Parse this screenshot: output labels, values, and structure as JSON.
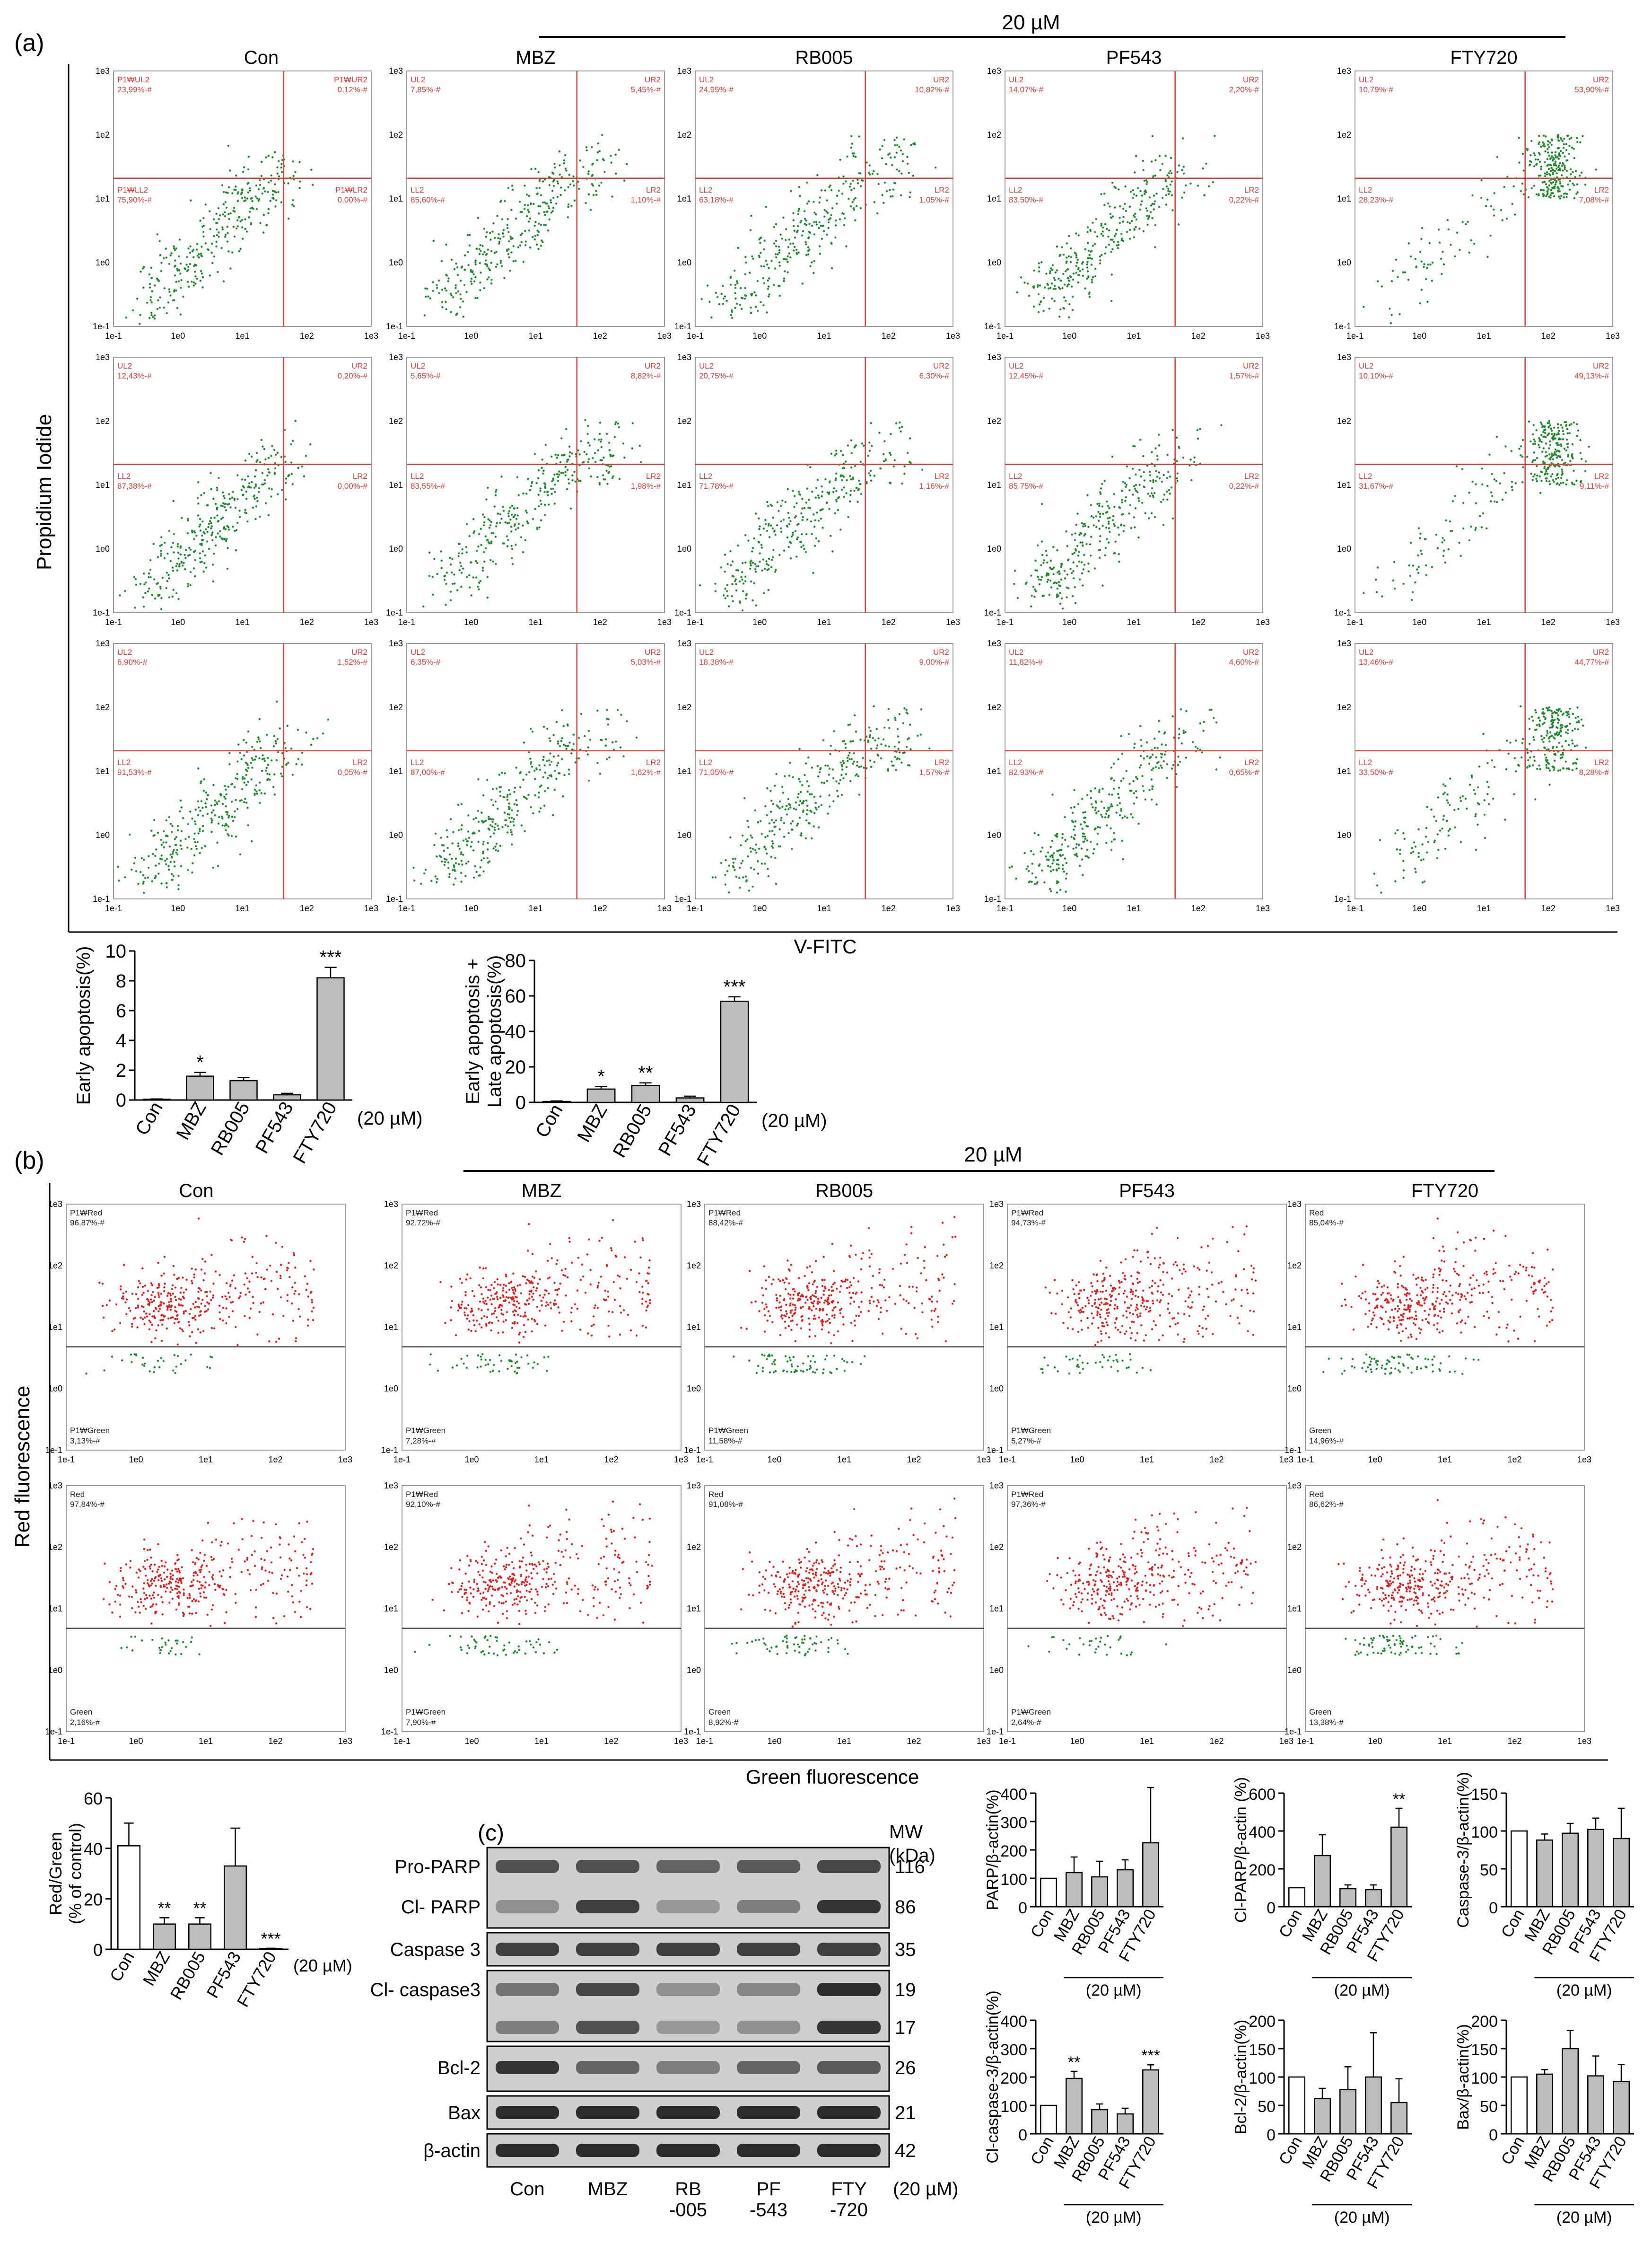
{
  "panel_labels": {
    "a": "(a)",
    "b": "(b)",
    "c": "(c)"
  },
  "colors": {
    "dot_green": "#1f8a2e",
    "dot_red": "#e02020",
    "gate_red": "#e43b3b",
    "bar_gray": "#bdbdbd",
    "bar_white": "#ffffff"
  },
  "panel_a": {
    "dose_label": "20 µM",
    "columns": [
      "Con",
      "MBZ",
      "RB005",
      "PF543",
      "FTY720"
    ],
    "y_axis_label": "Propidium Iodide",
    "x_axis_label": "V-FITC",
    "decade_ticks": [
      "1e-1",
      "1e0",
      "1e1",
      "1e2",
      "1e3"
    ],
    "plots": [
      [
        {
          "ul_label": "P1₩UL2",
          "ul": "23,99%-#",
          "ur_label": "P1₩UR2",
          "ur": "0,12%-#",
          "ll_label": "P1₩LL2",
          "ll": "75,90%-#",
          "lr_label": "P1₩LR2",
          "lr": "0,00%-#"
        },
        {
          "ul_label": "UL2",
          "ul": "7,85%-#",
          "ur_label": "UR2",
          "ur": "5,45%-#",
          "ll_label": "LL2",
          "ll": "85,60%-#",
          "lr_label": "LR2",
          "lr": "1,10%-#"
        },
        {
          "ul_label": "UL2",
          "ul": "24,95%-#",
          "ur_label": "UR2",
          "ur": "10,82%-#",
          "ll_label": "LL2",
          "ll": "63,18%-#",
          "lr_label": "LR2",
          "lr": "1,05%-#"
        },
        {
          "ul_label": "UL2",
          "ul": "14,07%-#",
          "ur_label": "UR2",
          "ur": "2,20%-#",
          "ll_label": "LL2",
          "ll": "83,50%-#",
          "lr_label": "LR2",
          "lr": "0,22%-#"
        },
        {
          "ul_label": "UL2",
          "ul": "10,79%-#",
          "ur_label": "UR2",
          "ur": "53,90%-#",
          "ll_label": "LL2",
          "ll": "28,23%-#",
          "lr_label": "LR2",
          "lr": "7,08%-#"
        }
      ],
      [
        {
          "ul_label": "UL2",
          "ul": "12,43%-#",
          "ur_label": "UR2",
          "ur": "0,20%-#",
          "ll_label": "LL2",
          "ll": "87,38%-#",
          "lr_label": "LR2",
          "lr": "0,00%-#"
        },
        {
          "ul_label": "UL2",
          "ul": "5,65%-#",
          "ur_label": "UR2",
          "ur": "8,82%-#",
          "ll_label": "LL2",
          "ll": "83,55%-#",
          "lr_label": "LR2",
          "lr": "1,98%-#"
        },
        {
          "ul_label": "UL2",
          "ul": "20,75%-#",
          "ur_label": "UR2",
          "ur": "6,30%-#",
          "ll_label": "LL2",
          "ll": "71,78%-#",
          "lr_label": "LR2",
          "lr": "1,16%-#"
        },
        {
          "ul_label": "UL2",
          "ul": "12,45%-#",
          "ur_label": "UR2",
          "ur": "1,57%-#",
          "ll_label": "LL2",
          "ll": "85,75%-#",
          "lr_label": "LR2",
          "lr": "0,22%-#"
        },
        {
          "ul_label": "UL2",
          "ul": "10,10%-#",
          "ur_label": "UR2",
          "ur": "49,13%-#",
          "ll_label": "LL2",
          "ll": "31,67%-#",
          "lr_label": "LR2",
          "lr": "9,11%-#"
        }
      ],
      [
        {
          "ul_label": "UL2",
          "ul": "6,90%-#",
          "ur_label": "UR2",
          "ur": "1,52%-#",
          "ll_label": "LL2",
          "ll": "91,53%-#",
          "lr_label": "LR2",
          "lr": "0,05%-#"
        },
        {
          "ul_label": "UL2",
          "ul": "6,35%-#",
          "ur_label": "UR2",
          "ur": "5,03%-#",
          "ll_label": "LL2",
          "ll": "87,00%-#",
          "lr_label": "LR2",
          "lr": "1,62%-#"
        },
        {
          "ul_label": "UL2",
          "ul": "18,38%-#",
          "ur_label": "UR2",
          "ur": "9,00%-#",
          "ll_label": "LL2",
          "ll": "71,05%-#",
          "lr_label": "LR2",
          "lr": "1,57%-#"
        },
        {
          "ul_label": "UL2",
          "ul": "11,82%-#",
          "ur_label": "UR2",
          "ur": "4,60%-#",
          "ll_label": "LL2",
          "ll": "82,93%-#",
          "lr_label": "LR2",
          "lr": "0,65%-#"
        },
        {
          "ul_label": "UL2",
          "ul": "13,46%-#",
          "ur_label": "UR2",
          "ur": "44,77%-#",
          "ll_label": "LL2",
          "ll": "33,50%-#",
          "lr_label": "LR2",
          "lr": "8,28%-#"
        }
      ]
    ]
  },
  "panel_b": {
    "dose_label": "20 µM",
    "columns": [
      "Con",
      "MBZ",
      "RB005",
      "PF543",
      "FTY720"
    ],
    "y_axis_label": "Red fluorescence",
    "x_axis_label": "Green fluorescence",
    "decade_ticks": [
      "1e-1",
      "1e0",
      "1e1",
      "1e2",
      "1e3"
    ],
    "plots": [
      [
        {
          "red_label": "P1₩Red",
          "red": "96,87%-#",
          "green_label": "P1₩Green",
          "green": "3,13%-#"
        },
        {
          "red_label": "P1₩Red",
          "red": "92,72%-#",
          "green_label": "P1₩Green",
          "green": "7,28%-#"
        },
        {
          "red_label": "P1₩Red",
          "red": "88,42%-#",
          "green_label": "P1₩Green",
          "green": "11,58%-#"
        },
        {
          "red_label": "P1₩Red",
          "red": "94,73%-#",
          "green_label": "P1₩Green",
          "green": "5,27%-#"
        },
        {
          "red_label": "Red",
          "red": "85,04%-#",
          "green_label": "Green",
          "green": "14,96%-#"
        }
      ],
      [
        {
          "red_label": "Red",
          "red": "97,84%-#",
          "green_label": "Green",
          "green": "2,16%-#"
        },
        {
          "red_label": "P1₩Red",
          "red": "92,10%-#",
          "green_label": "P1₩Green",
          "green": "7,90%-#"
        },
        {
          "red_label": "Red",
          "red": "91,08%-#",
          "green_label": "Green",
          "green": "8,92%-#"
        },
        {
          "red_label": "P1₩Red",
          "red": "97,36%-#",
          "green_label": "P1₩Green",
          "green": "2,64%-#"
        },
        {
          "red_label": "Red",
          "red": "86,62%-#",
          "green_label": "Green",
          "green": "13,38%-#"
        }
      ]
    ]
  },
  "panel_c": {
    "mw_header": "MW",
    "mw_unit": "(kDa)",
    "blots": [
      {
        "label": "Pro-PARP",
        "mw": "116"
      },
      {
        "label": "Cl- PARP",
        "mw": "86"
      },
      {
        "label": "Caspase 3",
        "mw": "35"
      },
      {
        "label": "Cl- caspase3",
        "mw": "19"
      },
      {
        "label": "",
        "mw": "17"
      },
      {
        "label": "Bcl-2",
        "mw": "26"
      },
      {
        "label": "Bax",
        "mw": "21"
      },
      {
        "label": "β-actin",
        "mw": "42"
      }
    ],
    "lanes": [
      "Con",
      "MBZ",
      "RB\n-005",
      "PF\n-543",
      "FTY\n-720"
    ],
    "lane_dose": "(20 µM)"
  },
  "chart_data": [
    {
      "type": "bar",
      "id": "early",
      "ylabel": "Early apoptosis(%)",
      "categories": [
        "Con",
        "MBZ",
        "RB005",
        "PF543",
        "FTY720"
      ],
      "values": [
        0.05,
        1.6,
        1.3,
        0.35,
        8.2
      ],
      "errors": [
        0.02,
        0.25,
        0.2,
        0.1,
        0.7
      ],
      "sig": [
        "",
        "*",
        "",
        "",
        "***"
      ],
      "ylim": [
        0,
        10
      ],
      "yticks": [
        0,
        2,
        4,
        6,
        8,
        10
      ],
      "dose": "(20 µM)",
      "fills": [
        "#bdbdbd",
        "#bdbdbd",
        "#bdbdbd",
        "#bdbdbd",
        "#bdbdbd"
      ]
    },
    {
      "type": "bar",
      "id": "late",
      "ylabel": "Early apoptosis + Late apoptosis(%)",
      "categories": [
        "Con",
        "MBZ",
        "RB005",
        "PF543",
        "FTY720"
      ],
      "values": [
        0.5,
        7.5,
        9.5,
        2.5,
        57
      ],
      "errors": [
        0.3,
        1.5,
        1.5,
        1.0,
        2.5
      ],
      "sig": [
        "",
        "*",
        "**",
        "",
        "***"
      ],
      "ylim": [
        0,
        80
      ],
      "yticks": [
        0,
        20,
        40,
        60,
        80
      ],
      "dose": "(20 µM)",
      "fills": [
        "#bdbdbd",
        "#bdbdbd",
        "#bdbdbd",
        "#bdbdbd",
        "#bdbdbd"
      ]
    },
    {
      "type": "bar",
      "id": "redgreen",
      "ylabel": "Red/Green (% of control)",
      "categories": [
        "Con",
        "MBZ",
        "RB005",
        "PF543",
        "FTY720"
      ],
      "values": [
        41,
        10,
        10,
        33,
        0.3
      ],
      "errors": [
        9,
        2.5,
        2.5,
        15,
        0.1
      ],
      "sig": [
        "",
        "**",
        "**",
        "",
        "***"
      ],
      "ylim": [
        0,
        60
      ],
      "yticks": [
        0,
        20,
        40,
        60
      ],
      "dose": "(20 µM)",
      "fills": [
        "#ffffff",
        "#bdbdbd",
        "#bdbdbd",
        "#bdbdbd",
        "#bdbdbd"
      ]
    },
    {
      "type": "bar",
      "id": "parp",
      "ylabel": "PARP/β-actin(%)",
      "categories": [
        "Con",
        "MBZ",
        "RB005",
        "PF543",
        "FTY720"
      ],
      "values": [
        100,
        120,
        105,
        130,
        225
      ],
      "errors": [
        0,
        55,
        55,
        35,
        195
      ],
      "sig": [
        "",
        "",
        "",
        "",
        ""
      ],
      "ylim": [
        0,
        400
      ],
      "yticks": [
        0,
        100,
        200,
        300,
        400
      ],
      "dose": "(20 µM)",
      "fills": [
        "#ffffff",
        "#bdbdbd",
        "#bdbdbd",
        "#bdbdbd",
        "#bdbdbd"
      ]
    },
    {
      "type": "bar",
      "id": "clparp",
      "ylabel": "Cl-PARP/β-actin (%)",
      "categories": [
        "Con",
        "MBZ",
        "RB005",
        "PF543",
        "FTY720"
      ],
      "values": [
        100,
        270,
        95,
        90,
        420
      ],
      "errors": [
        0,
        110,
        20,
        25,
        100
      ],
      "sig": [
        "",
        "",
        "",
        "",
        "**"
      ],
      "ylim": [
        0,
        600
      ],
      "yticks": [
        0,
        200,
        400,
        600
      ],
      "dose": "(20 µM)",
      "fills": [
        "#ffffff",
        "#bdbdbd",
        "#bdbdbd",
        "#bdbdbd",
        "#bdbdbd"
      ]
    },
    {
      "type": "bar",
      "id": "casp3",
      "ylabel": "Caspase-3/β-actin(%)",
      "categories": [
        "Con",
        "MBZ",
        "RB005",
        "PF543",
        "FTY720"
      ],
      "values": [
        100,
        88,
        97,
        102,
        90
      ],
      "errors": [
        0,
        8,
        13,
        15,
        40
      ],
      "sig": [
        "",
        "",
        "",
        "",
        ""
      ],
      "ylim": [
        0,
        150
      ],
      "yticks": [
        0,
        50,
        100,
        150
      ],
      "dose": "(20 µM)",
      "fills": [
        "#ffffff",
        "#bdbdbd",
        "#bdbdbd",
        "#bdbdbd",
        "#bdbdbd"
      ]
    },
    {
      "type": "bar",
      "id": "clcasp3",
      "ylabel": "Cl-caspase-3/β-actin(%)",
      "categories": [
        "Con",
        "MBZ",
        "RB005",
        "PF543",
        "FTY720"
      ],
      "values": [
        100,
        195,
        85,
        70,
        225
      ],
      "errors": [
        0,
        25,
        20,
        20,
        18
      ],
      "sig": [
        "",
        "**",
        "",
        "",
        "***"
      ],
      "ylim": [
        0,
        400
      ],
      "yticks": [
        0,
        100,
        200,
        300,
        400
      ],
      "dose": "(20 µM)",
      "fills": [
        "#ffffff",
        "#bdbdbd",
        "#bdbdbd",
        "#bdbdbd",
        "#bdbdbd"
      ]
    },
    {
      "type": "bar",
      "id": "bcl2",
      "ylabel": "Bcl-2/β-actin(%)",
      "categories": [
        "Con",
        "MBZ",
        "RB005",
        "PF543",
        "FTY720"
      ],
      "values": [
        100,
        62,
        78,
        100,
        55
      ],
      "errors": [
        0,
        18,
        40,
        78,
        42
      ],
      "sig": [
        "",
        "",
        "",
        "",
        ""
      ],
      "ylim": [
        0,
        200
      ],
      "yticks": [
        0,
        50,
        100,
        150,
        200
      ],
      "dose": "(20 µM)",
      "fills": [
        "#ffffff",
        "#bdbdbd",
        "#bdbdbd",
        "#bdbdbd",
        "#bdbdbd"
      ]
    },
    {
      "type": "bar",
      "id": "bax",
      "ylabel": "Bax/β-actin(%)",
      "categories": [
        "Con",
        "MBZ",
        "RB005",
        "PF543",
        "FTY720"
      ],
      "values": [
        100,
        105,
        150,
        102,
        92
      ],
      "errors": [
        0,
        8,
        32,
        35,
        30
      ],
      "sig": [
        "",
        "",
        "",
        "",
        ""
      ],
      "ylim": [
        0,
        200
      ],
      "yticks": [
        0,
        50,
        100,
        150,
        200
      ],
      "dose": "(20 µM)",
      "fills": [
        "#ffffff",
        "#bdbdbd",
        "#bdbdbd",
        "#bdbdbd",
        "#bdbdbd"
      ]
    }
  ]
}
